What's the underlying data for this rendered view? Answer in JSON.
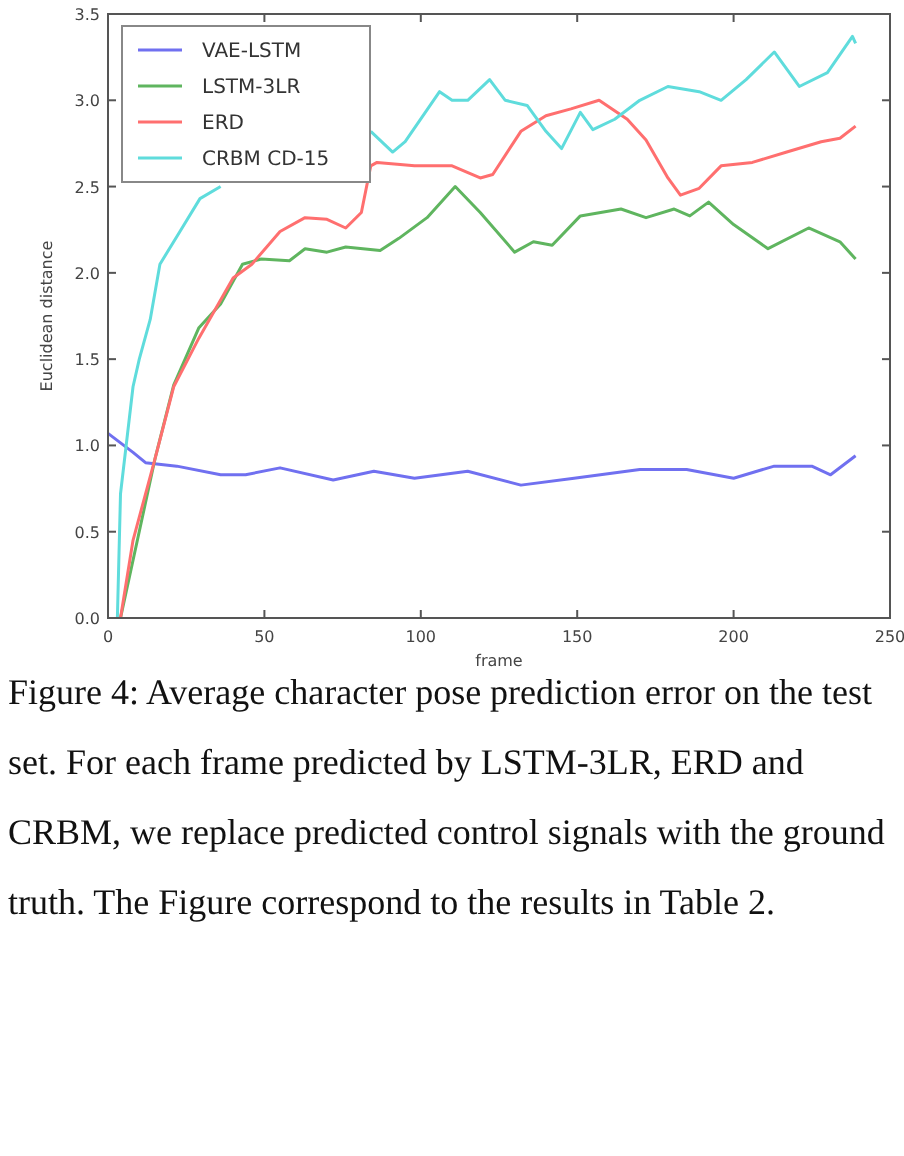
{
  "chart_data": {
    "type": "line",
    "xlabel": "frame",
    "ylabel": "Euclidean distance",
    "xlim": [
      0,
      250
    ],
    "xticks": [
      0,
      50,
      100,
      150,
      200,
      250
    ],
    "ylim": [
      0,
      3.5
    ],
    "yticks": [
      {
        "value": 0,
        "label": "0.0"
      },
      {
        "value": 0.5,
        "label": "0.5"
      },
      {
        "value": 1,
        "label": "1.0"
      },
      {
        "value": 1.5,
        "label": "1.5"
      },
      {
        "value": 2,
        "label": "2.0"
      },
      {
        "value": 2.5,
        "label": "2.5"
      },
      {
        "value": 3,
        "label": "3.0"
      },
      {
        "value": 3.5,
        "label": "3.5"
      }
    ],
    "grid": false,
    "legend": "top left",
    "line_style": "solid",
    "marker": "none",
    "annotations": [
      "Figure 4: Average character pose prediction error on the test set. For each frame predicted by LSTM-3LR, ERD and CRBM, we replace predicted control signals with the ground truth. The Figure correspond to the results in Table 2."
    ],
    "series": [
      {
        "name": "VAE-LSTM",
        "color": "#7070f0",
        "x": [
          0,
          8,
          12,
          22,
          36,
          44,
          55,
          72,
          85,
          98,
          115,
          132,
          149,
          170,
          185,
          200,
          213,
          225,
          231,
          239
        ],
        "values": [
          1.07,
          0.96,
          0.9,
          0.88,
          0.83,
          0.83,
          0.87,
          0.8,
          0.85,
          0.81,
          0.85,
          0.77,
          0.81,
          0.86,
          0.86,
          0.81,
          0.88,
          0.88,
          0.83,
          0.94
        ]
      },
      {
        "name": "LSTM-3LR",
        "color": "#5fb55f",
        "x": [
          4,
          15,
          21,
          29,
          36,
          43,
          49,
          58,
          63,
          70,
          76,
          87,
          93,
          102,
          111,
          119,
          130,
          136,
          142,
          151,
          164,
          172,
          181,
          186,
          192,
          200,
          211,
          224,
          234,
          239
        ],
        "values": [
          0,
          0.92,
          1.35,
          1.68,
          1.82,
          2.05,
          2.08,
          2.07,
          2.14,
          2.12,
          2.15,
          2.13,
          2.2,
          2.32,
          2.5,
          2.35,
          2.12,
          2.18,
          2.16,
          2.33,
          2.37,
          2.32,
          2.37,
          2.33,
          2.41,
          2.28,
          2.14,
          2.26,
          2.18,
          2.08
        ]
      },
      {
        "name": "ERD",
        "color": "#ff6f6f",
        "x": [
          4,
          8,
          15,
          21,
          29,
          40,
          46,
          55,
          63,
          70,
          76,
          81,
          84,
          86,
          98,
          110,
          119,
          123,
          132,
          140,
          148,
          157,
          166,
          172,
          179,
          183,
          189,
          196,
          206,
          217,
          228,
          234,
          239
        ],
        "values": [
          0,
          0.45,
          0.92,
          1.34,
          1.62,
          1.97,
          2.05,
          2.24,
          2.32,
          2.31,
          2.26,
          2.35,
          2.62,
          2.64,
          2.62,
          2.62,
          2.55,
          2.57,
          2.82,
          2.91,
          2.95,
          3.0,
          2.89,
          2.77,
          2.55,
          2.45,
          2.49,
          2.62,
          2.64,
          2.7,
          2.76,
          2.78,
          2.85
        ]
      },
      {
        "name": "CRBM CD-15",
        "color": "#5fdcdc",
        "x": [
          3,
          4,
          8,
          10,
          13.5,
          16.6,
          23,
          29.4,
          36,
          40,
          80,
          84,
          91,
          95,
          106,
          110,
          115,
          122,
          127,
          134,
          140,
          145,
          151,
          155,
          162,
          170,
          179,
          189,
          196,
          204,
          213,
          221,
          230,
          238,
          239
        ],
        "values": [
          0,
          0.72,
          1.34,
          1.5,
          1.73,
          2.05,
          2.24,
          2.43,
          2.5,
          null,
          null,
          2.82,
          2.7,
          2.76,
          3.05,
          3.0,
          3.0,
          3.12,
          3.0,
          2.97,
          2.82,
          2.72,
          2.93,
          2.83,
          2.89,
          3.0,
          3.08,
          3.05,
          3.0,
          3.12,
          3.28,
          3.08,
          3.16,
          3.37,
          3.33
        ]
      }
    ]
  }
}
